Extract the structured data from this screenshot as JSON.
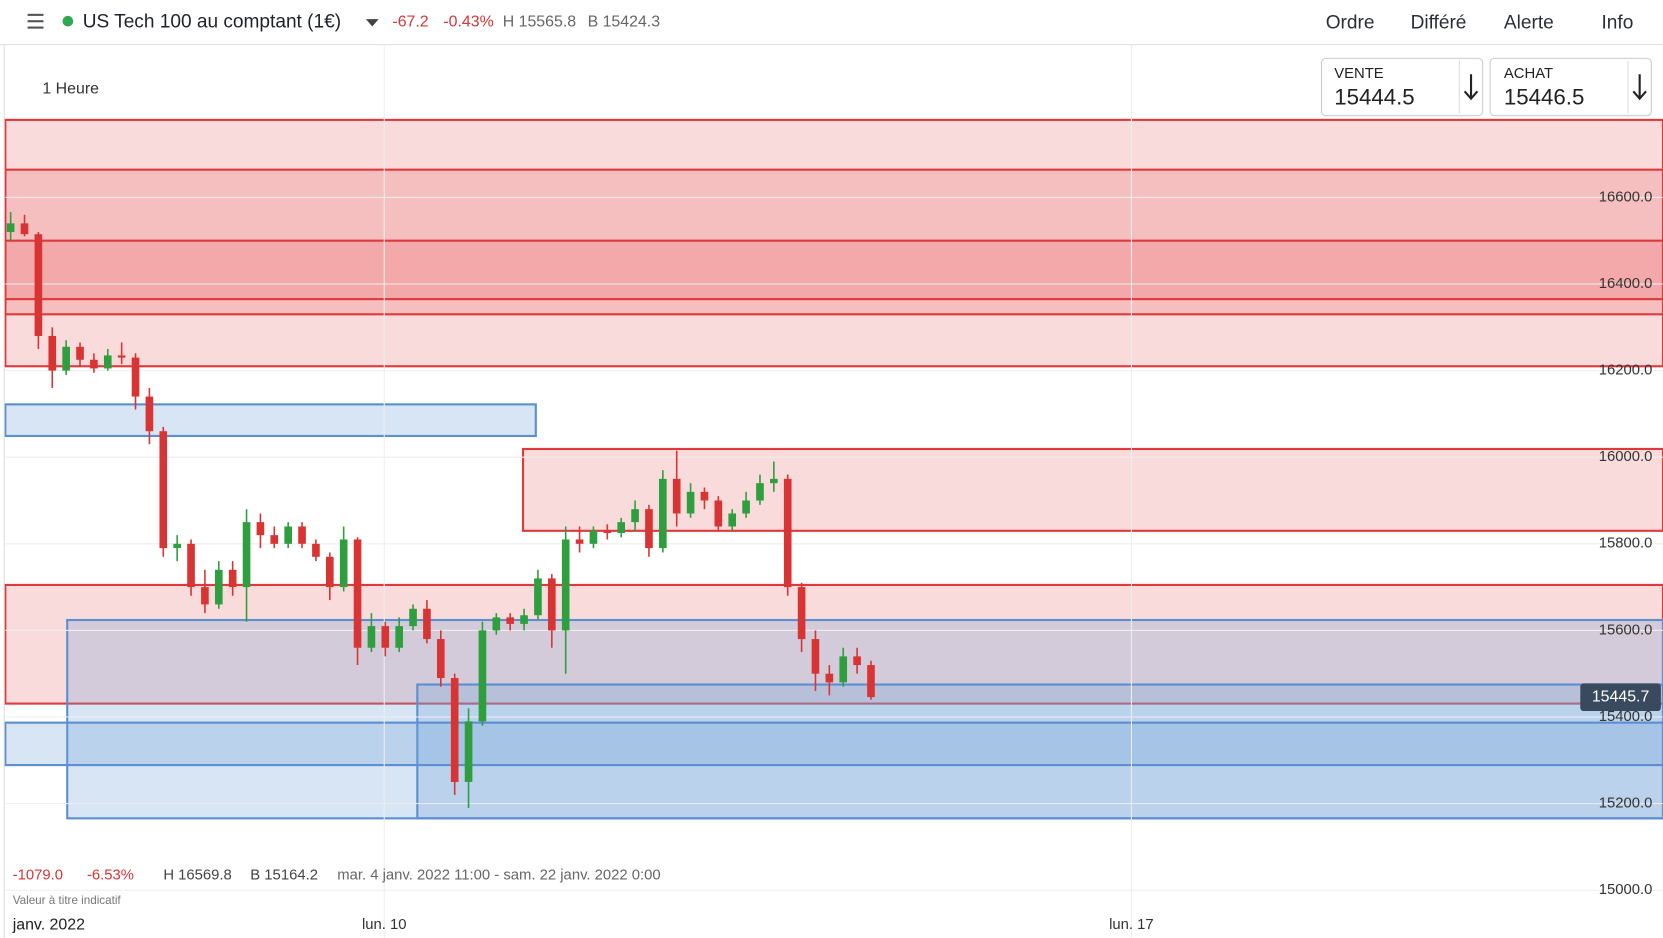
{
  "header": {
    "title": "US Tech 100 au comptant (1€)",
    "change": "-67.2",
    "change_pct": "-0.43%",
    "high": "H 15565.8",
    "low": "B 15424.3"
  },
  "nav": [
    "Ordre",
    "Différé",
    "Alerte",
    "Info"
  ],
  "toolbar": {
    "timeframe": "1 Heure"
  },
  "quotes": {
    "sell_label": "VENTE",
    "sell": "15444.5",
    "buy_label": "ACHAT",
    "buy": "15446.5"
  },
  "footer": {
    "change": "-1079.0",
    "change_pct": "-6.53%",
    "high": "H 16569.8",
    "low": "B 15164.2",
    "range": "mar. 4 janv. 2022 11:00 - sam. 22 janv. 2022 0:00",
    "note": "Valeur à titre indicatif"
  },
  "chart_data": {
    "type": "candlestick",
    "period_label": "janv. 2022",
    "xlim": [
      6.45,
      21.98
    ],
    "ylim": [
      14960,
      16800
    ],
    "xticks": [
      {
        "value": 10,
        "label": "lun. 10"
      },
      {
        "value": 17,
        "label": "lun. 17"
      }
    ],
    "yticks": [
      {
        "value": 15000,
        "label": "15000.0"
      },
      {
        "value": 15200,
        "label": "15200.0"
      },
      {
        "value": 15400,
        "label": "15400.0"
      },
      {
        "value": 15600,
        "label": "15600.0"
      },
      {
        "value": 15800,
        "label": "15800.0"
      },
      {
        "value": 16000,
        "label": "16000.0"
      },
      {
        "value": 16200,
        "label": "16200.0"
      },
      {
        "value": 16400,
        "label": "16400.0"
      },
      {
        "value": 16600,
        "label": "16600.0"
      }
    ],
    "grid": true,
    "up_color": "#2e9e3e",
    "down_color": "#d93434",
    "last_price": 15445.7,
    "zones": [
      {
        "y0": 16210,
        "y1": 16779,
        "color": "red"
      },
      {
        "y0": 16330,
        "y1": 16664,
        "color": "red"
      },
      {
        "y0": 16365,
        "y1": 16500,
        "color": "red"
      },
      {
        "y0": 15830,
        "y1": 16019,
        "x0": 11.3,
        "color": "red"
      },
      {
        "y0": 15431,
        "y1": 15705,
        "color": "red"
      },
      {
        "y0": 16049,
        "y1": 16122,
        "x0": 6.45,
        "x1": 11.42,
        "color": "blue"
      },
      {
        "y0": 15166,
        "y1": 15624,
        "x0": 7.03,
        "color": "blue"
      },
      {
        "y0": 15166,
        "y1": 15475,
        "x0": 10.31,
        "color": "blue"
      },
      {
        "y0": 15289,
        "y1": 15387,
        "color": "blue"
      }
    ],
    "x": [
      6.5,
      6.63,
      6.76,
      6.89,
      7.02,
      7.15,
      7.28,
      7.41,
      7.54,
      7.67,
      7.8,
      7.93,
      8.06,
      8.19,
      8.32,
      8.45,
      8.58,
      8.71,
      8.84,
      8.97,
      9.1,
      9.23,
      9.36,
      9.49,
      9.62,
      9.75,
      9.88,
      10.01,
      10.14,
      10.27,
      10.4,
      10.53,
      10.66,
      10.79,
      10.92,
      11.05,
      11.18,
      11.31,
      11.44,
      11.57,
      11.7,
      11.83,
      11.96,
      12.09,
      12.22,
      12.35,
      12.48,
      12.61,
      12.74,
      12.87,
      13,
      13.13,
      13.26,
      13.39,
      13.52,
      13.65,
      13.78,
      13.91,
      14.04,
      14.17,
      14.3,
      14.43,
      14.56
    ],
    "open": [
      16520,
      16540,
      16515,
      16280,
      16200,
      16255,
      16225,
      16205,
      16235,
      16230,
      16140,
      16060,
      15790,
      15800,
      15700,
      15660,
      15740,
      15700,
      15850,
      15820,
      15800,
      15840,
      15800,
      15770,
      15700,
      15810,
      15560,
      15610,
      15560,
      15610,
      15650,
      15580,
      15490,
      15250,
      15390,
      15600,
      15630,
      15615,
      15635,
      15720,
      15600,
      15810,
      15800,
      15830,
      15825,
      15850,
      15880,
      15790,
      15950,
      15870,
      15920,
      15900,
      15840,
      15870,
      15900,
      15940,
      15950,
      15700,
      15580,
      15500,
      15480,
      15540,
      15520
    ],
    "high": [
      16566,
      16560,
      16520,
      16300,
      16270,
      16265,
      16240,
      16250,
      16265,
      16240,
      16160,
      16070,
      15820,
      15810,
      15740,
      15760,
      15760,
      15880,
      15870,
      15840,
      15850,
      15850,
      15810,
      15780,
      15840,
      15815,
      15640,
      15620,
      15630,
      15660,
      15670,
      15600,
      15500,
      15420,
      15620,
      15640,
      15640,
      15650,
      15740,
      15730,
      15840,
      15840,
      15840,
      15845,
      15860,
      15900,
      15890,
      15970,
      16015,
      15940,
      15930,
      15910,
      15880,
      15920,
      15960,
      15990,
      15960,
      15710,
      15600,
      15520,
      15560,
      15560,
      15530
    ],
    "low": [
      16500,
      16510,
      16250,
      16160,
      16190,
      16210,
      16195,
      16200,
      16215,
      16110,
      16030,
      15770,
      15760,
      15680,
      15640,
      15650,
      15680,
      15620,
      15790,
      15790,
      15790,
      15790,
      15760,
      15670,
      15690,
      15520,
      15550,
      15540,
      15550,
      15600,
      15570,
      15470,
      15220,
      15190,
      15380,
      15590,
      15600,
      15600,
      15625,
      15560,
      15500,
      15780,
      15790,
      15810,
      15815,
      15830,
      15770,
      15780,
      15840,
      15860,
      15880,
      15830,
      15830,
      15860,
      15890,
      15920,
      15680,
      15550,
      15460,
      15450,
      15470,
      15500,
      15440
    ],
    "close": [
      16540,
      16515,
      16280,
      16200,
      16255,
      16225,
      16205,
      16235,
      16230,
      16140,
      16060,
      15790,
      15800,
      15700,
      15660,
      15740,
      15700,
      15850,
      15820,
      15800,
      15840,
      15800,
      15770,
      15700,
      15810,
      15560,
      15610,
      15560,
      15610,
      15650,
      15580,
      15490,
      15250,
      15390,
      15600,
      15630,
      15615,
      15635,
      15720,
      15600,
      15810,
      15800,
      15830,
      15825,
      15850,
      15880,
      15790,
      15950,
      15870,
      15920,
      15900,
      15840,
      15870,
      15900,
      15940,
      15950,
      15700,
      15580,
      15500,
      15480,
      15540,
      15520,
      15446
    ]
  }
}
